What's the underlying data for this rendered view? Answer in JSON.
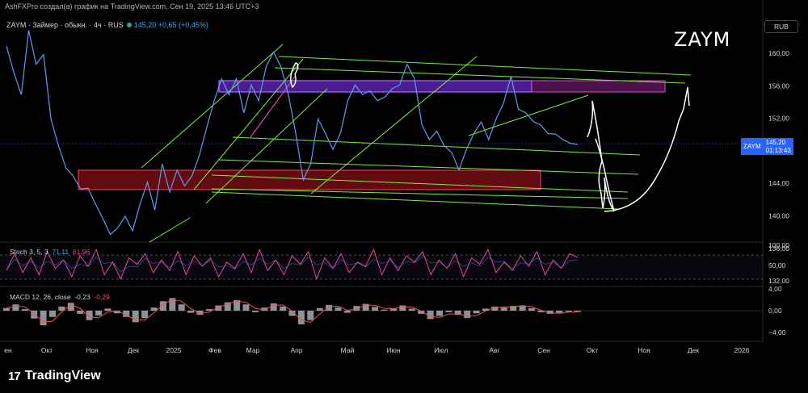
{
  "header": {
    "credit": "AshFXPro создал(а) график на TradingView.com, Сен 19, 2025 13:46 UTC+3"
  },
  "legend": {
    "symbol": "ZAYM · Займер · обыкн. · 4ч · RUS",
    "last": "145,20",
    "change": "+0,65 (+0,45%)"
  },
  "currency": "RUB",
  "watermark_title": "ZAYM",
  "price_tag": {
    "symbol": "ZAYM",
    "price": "145,20",
    "countdown": "01:13:43"
  },
  "stoch_legend": {
    "label": "Stoch 3, 5, 3",
    "k": "71,11",
    "d": "61,96"
  },
  "macd_legend": {
    "label": "MACD 12, 26, close",
    "hist": "-0,23",
    "signal": "-0,29"
  },
  "footer": {
    "brand": "TradingView"
  },
  "colors": {
    "price": "#5b9cf0",
    "green": "#7cf03a",
    "purple_zone": "#7b2fd6",
    "red_zone": "#a3121c",
    "stoch_k": "#e14a9b",
    "macd_hist": "#b2b5be"
  },
  "chart_data": [
    {
      "type": "line",
      "title": "ZAYM",
      "y_ticks": [
        "160,00",
        "156,00",
        "152,00",
        "148,00",
        "144,00",
        "140,00",
        "136,00",
        "132,00"
      ],
      "x_ticks": [
        "ен",
        "Окт",
        "Ноя",
        "Дек",
        "2025",
        "Фев",
        "Мар",
        "Апр",
        "Май",
        "Июн",
        "Июл",
        "Авг",
        "Сен",
        "Окт",
        "Ноя",
        "Дек",
        "2026"
      ],
      "ylim": [
        129,
        164
      ],
      "series": [
        {
          "values": [
            161.0,
            157.0,
            153.0,
            164.0,
            158.0,
            160.0,
            149.0,
            145.0,
            141.0,
            140.0,
            137.5,
            138.0,
            135.0,
            133.0,
            130.0,
            131.5,
            133.0,
            131.0,
            135.0,
            139.0,
            134.0,
            142.0,
            137.0,
            141.0,
            138.0,
            140.0,
            143.0,
            148.0,
            152.0,
            156.0,
            153.0,
            156.0,
            150.0,
            155.0,
            152.0,
            158.0,
            160.0,
            158.0,
            153.0,
            147.0,
            139.0,
            142.0,
            149.0,
            147.0,
            144.0,
            147.0,
            152.0,
            155.0,
            153.0,
            154.0,
            152.0,
            153.0,
            154.0,
            155.0,
            158.0,
            156.0,
            148.0,
            146.0,
            147.0,
            145.0,
            143.5,
            141.0,
            144.0,
            147.0,
            148.5,
            146.0,
            149.0,
            152.0,
            156.0,
            151.0,
            150.0,
            149.0,
            148.0,
            147.0,
            146.5,
            146.0,
            145.0,
            145.2
          ]
        }
      ]
    },
    {
      "type": "line",
      "title": "Stoch 3, 5, 3",
      "y_ticks": [
        "100,00",
        "50,00"
      ],
      "ylim": [
        0,
        100
      ],
      "series": [
        {
          "values": [
            40,
            80,
            35,
            70,
            30,
            85,
            45,
            65,
            25,
            75,
            50,
            90,
            30,
            60,
            20,
            70,
            55,
            80,
            35,
            65,
            40,
            85,
            30,
            75,
            50,
            70,
            25,
            60,
            45,
            80,
            35,
            90,
            40,
            65,
            30,
            75,
            55,
            85,
            20,
            70,
            45,
            80,
            35,
            60,
            50,
            90,
            30,
            70,
            40,
            75,
            60,
            85,
            30,
            65,
            45,
            80,
            25,
            70,
            55,
            90,
            35,
            60,
            40,
            75,
            50,
            85,
            30,
            65,
            45,
            80,
            71
          ]
        }
      ]
    },
    {
      "type": "bar",
      "title": "MACD 12, 26, close",
      "y_ticks": [
        "4,00",
        "0,00",
        "−4,00"
      ],
      "ylim": [
        -4.8,
        4.8
      ],
      "series": [
        {
          "values": [
            0.5,
            1.2,
            0.3,
            -1.5,
            -2.8,
            -1.2,
            0.8,
            1.5,
            -0.6,
            -1.8,
            -0.9,
            0.4,
            -0.5,
            -1.2,
            -2.2,
            -1.4,
            0.6,
            1.8,
            2.4,
            1.2,
            -0.4,
            -0.8,
            0.3,
            1.0,
            1.6,
            2.0,
            1.2,
            -0.3,
            0.6,
            1.4,
            0.8,
            -1.0,
            -2.6,
            -1.8,
            0.5,
            1.1,
            0.6,
            -0.4,
            0.9,
            1.3,
            0.7,
            0.2,
            0.5,
            1.0,
            0.4,
            -0.6,
            -1.6,
            -1.0,
            -0.3,
            -0.8,
            -1.4,
            -0.5,
            0.4,
            0.8,
            0.6,
            0.9,
            1.0,
            0.5,
            -0.3,
            -0.6,
            -0.4,
            -0.2,
            -0.23
          ]
        }
      ]
    }
  ]
}
